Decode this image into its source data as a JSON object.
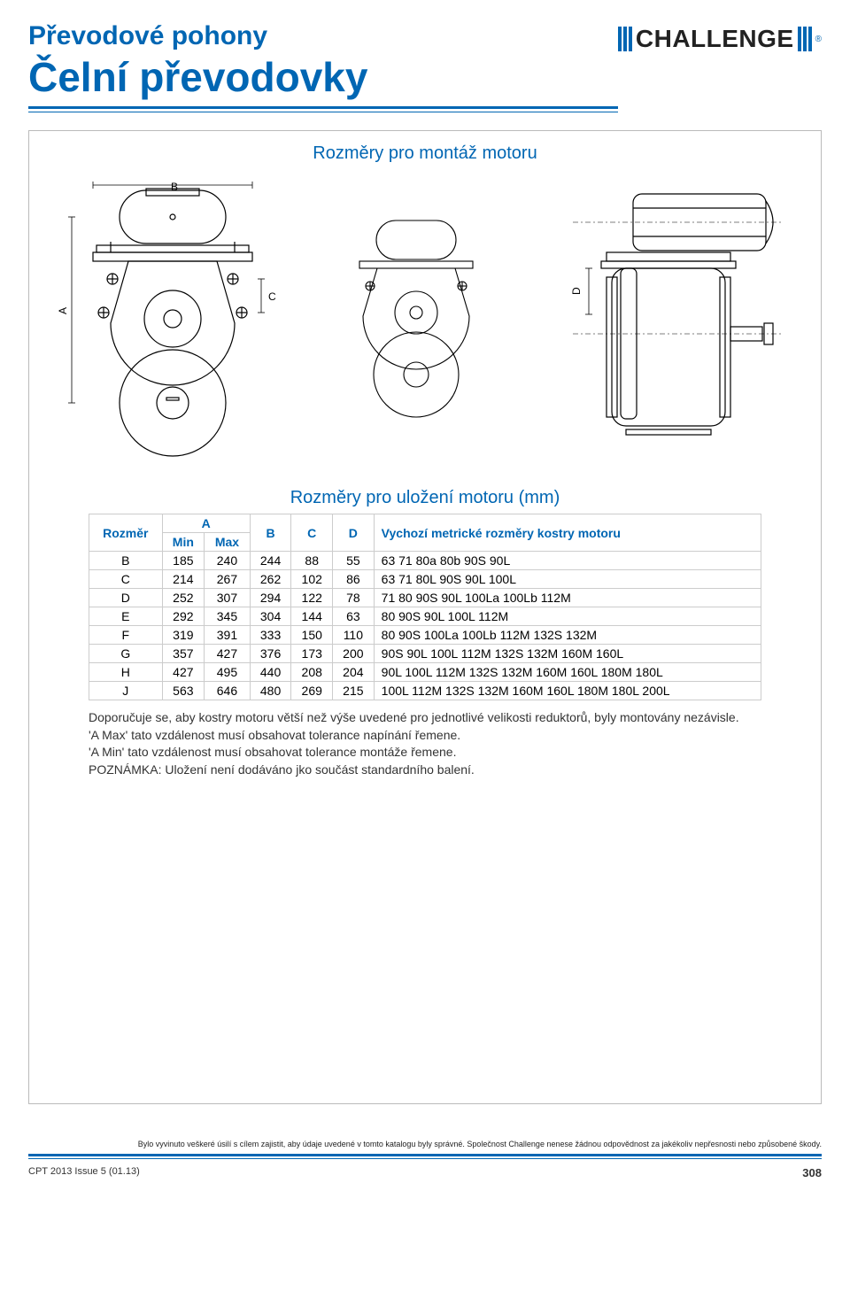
{
  "colors": {
    "brand_blue": "#0066b3",
    "text": "#000000",
    "border_gray": "#cccccc",
    "frame_gray": "#bbbbbb"
  },
  "header": {
    "pretitle": "Převodové pohony",
    "title": "Čelní převodovky",
    "brand": "CHALLENGE",
    "registered": "®"
  },
  "diagram": {
    "title": "Rozměry pro montáž motoru",
    "labels": {
      "A": "A",
      "B": "B",
      "C": "C",
      "D": "D"
    }
  },
  "table": {
    "title": "Rozměry pro uložení motoru (mm)",
    "header_rozmer": "Rozměr",
    "header_A": "A",
    "header_min": "Min",
    "header_max": "Max",
    "header_B": "B",
    "header_C": "C",
    "header_D": "D",
    "header_vychozi": "Vychozí metrické rozměry kostry motoru",
    "rows": [
      {
        "r": "B",
        "min": "185",
        "max": "240",
        "b": "244",
        "c": "88",
        "d": "55",
        "v": "63 71 80a 80b 90S 90L"
      },
      {
        "r": "C",
        "min": "214",
        "max": "267",
        "b": "262",
        "c": "102",
        "d": "86",
        "v": "63 71 80L 90S 90L 100L"
      },
      {
        "r": "D",
        "min": "252",
        "max": "307",
        "b": "294",
        "c": "122",
        "d": "78",
        "v": "71 80 90S 90L 100La 100Lb 112M"
      },
      {
        "r": "E",
        "min": "292",
        "max": "345",
        "b": "304",
        "c": "144",
        "d": "63",
        "v": "80 90S 90L 100L 112M"
      },
      {
        "r": "F",
        "min": "319",
        "max": "391",
        "b": "333",
        "c": "150",
        "d": "110",
        "v": "80 90S 100La 100Lb 112M 132S 132M"
      },
      {
        "r": "G",
        "min": "357",
        "max": "427",
        "b": "376",
        "c": "173",
        "d": "200",
        "v": "90S 90L 100L 112M 132S 132M 160M 160L"
      },
      {
        "r": "H",
        "min": "427",
        "max": "495",
        "b": "440",
        "c": "208",
        "d": "204",
        "v": "90L 100L 112M 132S 132M 160M 160L 180M 180L"
      },
      {
        "r": "J",
        "min": "563",
        "max": "646",
        "b": "480",
        "c": "269",
        "d": "215",
        "v": "100L 112M 132S 132M 160M 160L 180M 180L 200L"
      }
    ]
  },
  "notes": {
    "line1": "Doporučuje se, aby kostry motoru větší než výše uvedené pro jednotlivé velikosti reduktorů, byly montovány nezávisle.",
    "line2": "'A Max' tato vzdálenost musí obsahovat tolerance napínání řemene.",
    "line3": "'A Min' tato vzdálenost musí obsahovat tolerance montáže řemene.",
    "line4": "POZNÁMKA: Uložení není dodáváno jko součást standardního balení."
  },
  "footer": {
    "disclaimer": "Bylo vyvinuto veškeré úsilí s cílem zajistit, aby údaje uvedené v tomto katalogu byly správné. Společnost Challenge nenese žádnou odpovědnost za jakékoliv nepřesnosti nebo způsobené škody.",
    "issue": "CPT 2013 Issue 5 (01.13)",
    "page": "308"
  }
}
